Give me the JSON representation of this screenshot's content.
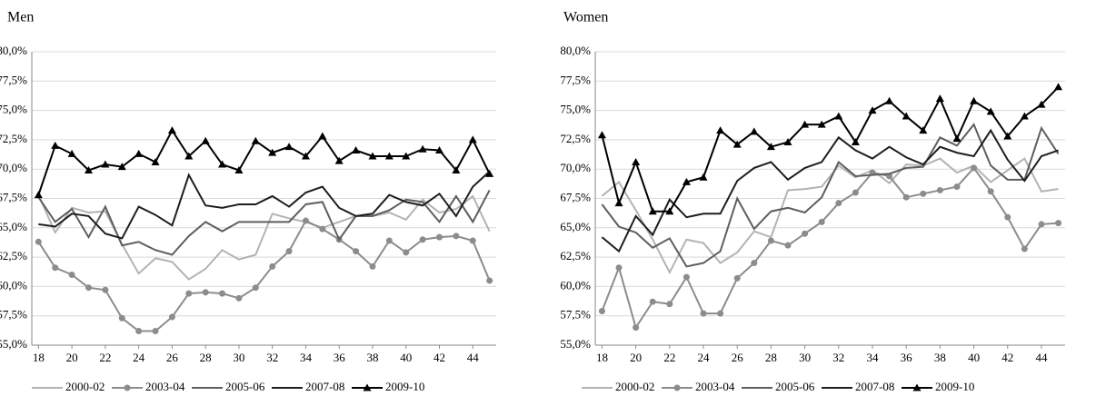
{
  "chart_data": [
    {
      "type": "line",
      "title": "Men",
      "x": [
        18,
        19,
        20,
        21,
        22,
        23,
        24,
        25,
        26,
        27,
        28,
        29,
        30,
        31,
        32,
        33,
        34,
        35,
        36,
        37,
        38,
        39,
        40,
        41,
        42,
        43,
        44,
        45
      ],
      "xlim": [
        17.6,
        45.4
      ],
      "xticks": [
        18,
        20,
        22,
        24,
        26,
        28,
        30,
        32,
        34,
        36,
        38,
        40,
        42,
        44
      ],
      "ylim": [
        55,
        80
      ],
      "yticks": [
        {
          "value": 55,
          "label": "55,0%"
        },
        {
          "value": 57.5,
          "label": "57,5%"
        },
        {
          "value": 60,
          "label": "60,0%"
        },
        {
          "value": 62.5,
          "label": "62,5%"
        },
        {
          "value": 65,
          "label": "65,0%"
        },
        {
          "value": 67.5,
          "label": "67,5%"
        },
        {
          "value": 70,
          "label": "70,0%"
        },
        {
          "value": 72.5,
          "label": "72,5%"
        },
        {
          "value": 75,
          "label": "75,0%"
        },
        {
          "value": 77.5,
          "label": "77,5%"
        },
        {
          "value": 80,
          "label": "80,0%"
        }
      ],
      "grid": true,
      "series": [
        {
          "name": "2000-02",
          "color": "#b3b3b3",
          "values": [
            67.8,
            64.6,
            66.7,
            66.3,
            66.4,
            63.6,
            61.1,
            62.4,
            62.1,
            60.6,
            61.5,
            63.1,
            62.3,
            62.7,
            66.2,
            65.8,
            65.5,
            65.0,
            65.5,
            66.0,
            66.0,
            66.3,
            65.7,
            67.4,
            66.3,
            66.6,
            67.7,
            64.7
          ]
        },
        {
          "name": "2003-04",
          "color": "#8c8c8c",
          "marker": "circle",
          "values": [
            63.8,
            61.6,
            61.0,
            59.9,
            59.7,
            57.3,
            56.2,
            56.2,
            57.4,
            59.4,
            59.5,
            59.4,
            59.0,
            59.9,
            61.7,
            63.0,
            65.6,
            64.9,
            64.0,
            63.0,
            61.7,
            63.9,
            62.9,
            64.0,
            64.2,
            64.3,
            63.9,
            60.5
          ]
        },
        {
          "name": "2005-06",
          "color": "#5e5e5e",
          "values": [
            67.6,
            65.5,
            66.6,
            64.2,
            66.8,
            63.5,
            63.8,
            63.1,
            62.7,
            64.3,
            65.5,
            64.7,
            65.5,
            65.5,
            65.5,
            65.5,
            67.0,
            67.2,
            64.0,
            66.0,
            66.0,
            66.5,
            67.4,
            67.2,
            65.5,
            67.7,
            65.5,
            68.2
          ]
        },
        {
          "name": "2007-08",
          "color": "#1e1e1e",
          "values": [
            65.3,
            65.1,
            66.2,
            66.0,
            64.5,
            64.1,
            66.8,
            66.1,
            65.2,
            69.5,
            66.9,
            66.7,
            67.0,
            67.0,
            67.7,
            66.8,
            68.0,
            68.5,
            66.7,
            66.0,
            66.2,
            67.8,
            67.2,
            66.9,
            67.9,
            66.0,
            68.5,
            69.8
          ]
        },
        {
          "name": "2009-10",
          "color": "#000000",
          "marker": "triangle",
          "values": [
            67.8,
            72.0,
            71.3,
            69.9,
            70.4,
            70.2,
            71.3,
            70.6,
            73.3,
            71.1,
            72.4,
            70.4,
            69.9,
            72.4,
            71.4,
            71.9,
            71.1,
            72.8,
            70.7,
            71.6,
            71.1,
            71.1,
            71.1,
            71.7,
            71.6,
            69.9,
            72.5,
            69.6
          ]
        }
      ]
    },
    {
      "type": "line",
      "title": "Women",
      "x": [
        18,
        19,
        20,
        21,
        22,
        23,
        24,
        25,
        26,
        27,
        28,
        29,
        30,
        31,
        32,
        33,
        34,
        35,
        36,
        37,
        38,
        39,
        40,
        41,
        42,
        43,
        44,
        45
      ],
      "xlim": [
        17.6,
        45.4
      ],
      "xticks": [
        18,
        20,
        22,
        24,
        26,
        28,
        30,
        32,
        34,
        36,
        38,
        40,
        42,
        44
      ],
      "ylim": [
        55,
        80
      ],
      "yticks": [
        {
          "value": 55,
          "label": "55,0%"
        },
        {
          "value": 57.5,
          "label": "57,5%"
        },
        {
          "value": 60,
          "label": "60,0%"
        },
        {
          "value": 62.5,
          "label": "62,5%"
        },
        {
          "value": 65,
          "label": "65,0%"
        },
        {
          "value": 67.5,
          "label": "67,5%"
        },
        {
          "value": 70,
          "label": "70,0%"
        },
        {
          "value": 72.5,
          "label": "72,5%"
        },
        {
          "value": 75,
          "label": "75,0%"
        },
        {
          "value": 77.5,
          "label": "77,5%"
        },
        {
          "value": 80,
          "label": "80,0%"
        }
      ],
      "grid": true,
      "series": [
        {
          "name": "2000-02",
          "color": "#b3b3b3",
          "values": [
            67.7,
            68.9,
            66.5,
            64.0,
            61.2,
            64.0,
            63.7,
            62.0,
            62.9,
            64.7,
            64.2,
            68.2,
            68.3,
            68.5,
            70.3,
            69.3,
            69.9,
            68.8,
            70.4,
            70.3,
            70.9,
            69.7,
            70.3,
            68.9,
            69.9,
            70.9,
            68.1,
            68.3
          ]
        },
        {
          "name": "2003-04",
          "color": "#8c8c8c",
          "marker": "circle",
          "values": [
            57.9,
            61.6,
            56.5,
            58.7,
            58.5,
            60.8,
            57.7,
            57.7,
            60.7,
            62.0,
            63.9,
            63.5,
            64.5,
            65.5,
            67.1,
            68.0,
            69.7,
            69.4,
            67.6,
            67.9,
            68.2,
            68.5,
            70.1,
            68.1,
            65.9,
            63.2,
            65.3,
            65.4
          ]
        },
        {
          "name": "2005-06",
          "color": "#5e5e5e",
          "values": [
            67.0,
            65.1,
            64.6,
            63.3,
            64.1,
            61.7,
            62.0,
            63.0,
            67.5,
            64.9,
            66.4,
            66.7,
            66.3,
            67.6,
            70.6,
            69.4,
            69.5,
            69.6,
            70.1,
            70.2,
            72.7,
            72.0,
            73.8,
            70.3,
            69.1,
            69.1,
            73.5,
            71.3
          ]
        },
        {
          "name": "2007-08",
          "color": "#1e1e1e",
          "values": [
            64.2,
            63.0,
            66.0,
            64.4,
            67.4,
            65.9,
            66.2,
            66.2,
            69.0,
            70.1,
            70.6,
            69.1,
            70.1,
            70.6,
            72.7,
            71.6,
            70.9,
            71.9,
            71.0,
            70.4,
            71.9,
            71.4,
            71.1,
            73.3,
            70.8,
            69.0,
            71.1,
            71.6
          ]
        },
        {
          "name": "2009-10",
          "color": "#000000",
          "marker": "triangle",
          "values": [
            72.9,
            67.1,
            70.6,
            66.4,
            66.4,
            68.9,
            69.3,
            73.3,
            72.1,
            73.2,
            71.9,
            72.3,
            73.8,
            73.8,
            74.5,
            72.3,
            75.0,
            75.8,
            74.5,
            73.3,
            76.0,
            72.6,
            75.8,
            74.9,
            72.8,
            74.5,
            75.5,
            77.0
          ]
        }
      ]
    }
  ]
}
